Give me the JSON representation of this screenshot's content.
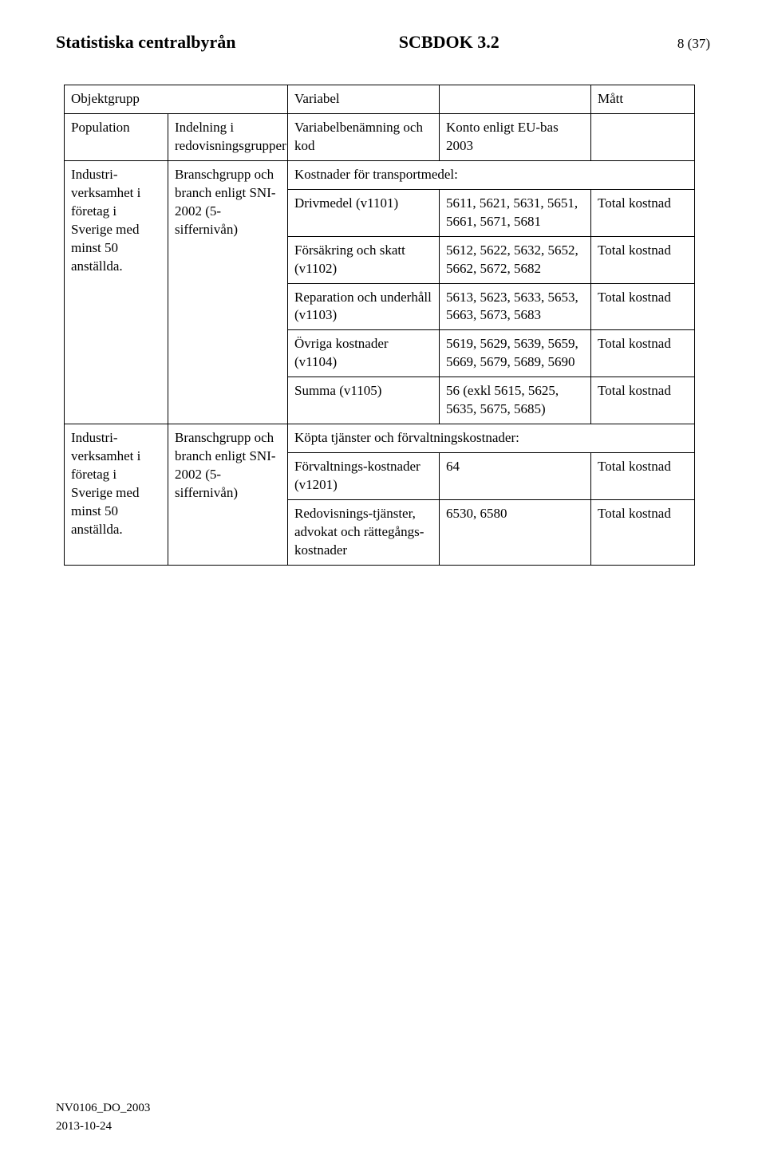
{
  "header": {
    "left": "Statistiska centralbyrån",
    "center": "SCBDOK 3.2",
    "right": "8 (37)"
  },
  "table": {
    "title_row": {
      "objektgrupp": "Objektgrupp",
      "variabel": "Variabel",
      "matt": "Mått"
    },
    "sub_row": {
      "population": "Population",
      "indelning": "Indelning i redovisningsgrupper",
      "varbenamning": "Variabelbenämning och kod",
      "konto": "Konto enligt EU-bas 2003"
    },
    "group1": {
      "population": "Industri-verksamhet i företag i Sverige med minst 50 anställda.",
      "indelning": "Branschgrupp och branch enligt SNI-2002 (5-siffernivån)",
      "section_title": "Kostnader för transportmedel:",
      "rows": [
        {
          "var": "Drivmedel (v1101)",
          "konto": "5611, 5621, 5631, 5651, 5661, 5671, 5681",
          "matt": "Total kostnad"
        },
        {
          "var": "Försäkring och skatt (v1102)",
          "konto": "5612, 5622, 5632, 5652, 5662, 5672, 5682",
          "matt": "Total kostnad"
        },
        {
          "var": "Reparation och underhåll (v1103)",
          "konto": "5613, 5623, 5633, 5653, 5663, 5673, 5683",
          "matt": "Total kostnad"
        },
        {
          "var": "Övriga kostnader (v1104)",
          "konto": "5619, 5629, 5639, 5659, 5669, 5679, 5689, 5690",
          "matt": "Total kostnad"
        },
        {
          "var": "Summa (v1105)",
          "konto": "56 (exkl 5615, 5625, 5635, 5675, 5685)",
          "matt": "Total kostnad"
        }
      ]
    },
    "group2": {
      "population": "Industri-verksamhet i företag i Sverige med minst 50 anställda.",
      "indelning": "Branschgrupp och branch enligt SNI-2002 (5-siffernivån)",
      "section_title": "Köpta tjänster och förvaltningskostnader:",
      "rows": [
        {
          "var": "Förvaltnings-kostnader (v1201)",
          "konto": "64",
          "matt": "Total kostnad"
        },
        {
          "var": "Redovisnings-tjänster, advokat och rättegångs-kostnader",
          "konto": "6530, 6580",
          "matt": "Total kostnad"
        }
      ]
    }
  },
  "footer": {
    "line1": "NV0106_DO_2003",
    "line2": "2013-10-24"
  }
}
